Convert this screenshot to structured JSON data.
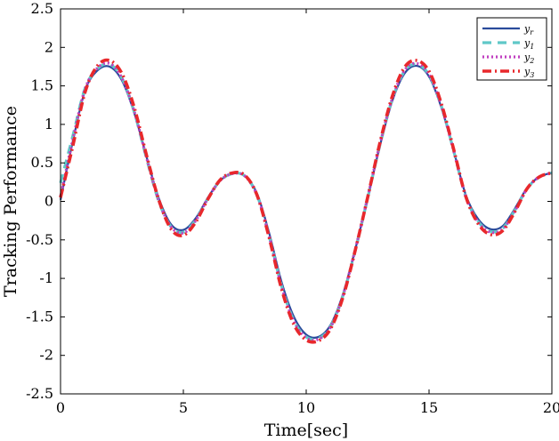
{
  "chart_data": {
    "type": "line",
    "title": "",
    "xlabel": "Time[sec]",
    "ylabel": "Tracking Performance",
    "xlim": [
      0,
      20
    ],
    "ylim": [
      -2.5,
      2.5
    ],
    "xticks": [
      0,
      5,
      10,
      15,
      20
    ],
    "xtick_labels": [
      "0",
      "5",
      "10",
      "15",
      "20"
    ],
    "yticks": [
      -2.5,
      -2,
      -1.5,
      -1,
      -0.5,
      0,
      0.5,
      1,
      1.5,
      2,
      2.5
    ],
    "ytick_labels": [
      "-2.5",
      "-2",
      "-1.5",
      "-1",
      "-0.5",
      "0",
      "0.5",
      "1",
      "1.5",
      "2",
      "2.5"
    ],
    "grid": false,
    "legend_position": "top-right",
    "x": [
      0,
      0.5,
      1,
      1.5,
      2,
      2.5,
      3,
      3.5,
      4,
      4.5,
      5,
      5.5,
      6,
      6.5,
      7,
      7.5,
      8,
      8.5,
      9,
      9.5,
      10,
      10.5,
      11,
      11.5,
      12,
      12.5,
      13,
      13.5,
      14,
      14.5,
      15,
      15.5,
      16,
      16.5,
      17,
      17.5,
      18,
      18.5,
      19,
      19.5,
      20
    ],
    "series": [
      {
        "name": "y_r",
        "legend_base": "y",
        "legend_sub": "r",
        "color": "#2a4b9b",
        "style": "solid",
        "values": [
          0.02,
          0.78,
          1.44,
          1.7,
          1.75,
          1.57,
          1.15,
          0.58,
          0.04,
          -0.3,
          -0.37,
          -0.22,
          0.05,
          0.27,
          0.36,
          0.33,
          0.1,
          -0.42,
          -1.05,
          -1.5,
          -1.73,
          -1.76,
          -1.6,
          -1.2,
          -0.62,
          0.04,
          0.72,
          1.3,
          1.66,
          1.76,
          1.62,
          1.22,
          0.66,
          0.08,
          -0.23,
          -0.36,
          -0.32,
          -0.09,
          0.18,
          0.32,
          0.37
        ]
      },
      {
        "name": "y_1",
        "legend_base": "y",
        "legend_sub": "1",
        "color": "#5fc8c8",
        "style": "dashed",
        "values": [
          0.24,
          0.85,
          1.47,
          1.72,
          1.78,
          1.6,
          1.16,
          0.56,
          0.0,
          -0.33,
          -0.4,
          -0.24,
          0.04,
          0.27,
          0.36,
          0.33,
          0.08,
          -0.46,
          -1.1,
          -1.55,
          -1.76,
          -1.78,
          -1.62,
          -1.22,
          -0.63,
          0.04,
          0.73,
          1.32,
          1.69,
          1.78,
          1.64,
          1.24,
          0.66,
          0.06,
          -0.26,
          -0.39,
          -0.35,
          -0.11,
          0.17,
          0.32,
          0.37
        ]
      },
      {
        "name": "y_2",
        "legend_base": "y",
        "legend_sub": "2",
        "color": "#c040c0",
        "style": "dotted",
        "values": [
          0.06,
          0.8,
          1.46,
          1.73,
          1.79,
          1.6,
          1.17,
          0.57,
          0.01,
          -0.33,
          -0.41,
          -0.25,
          0.04,
          0.27,
          0.36,
          0.33,
          0.08,
          -0.46,
          -1.11,
          -1.56,
          -1.77,
          -1.79,
          -1.63,
          -1.22,
          -0.62,
          0.05,
          0.74,
          1.33,
          1.7,
          1.79,
          1.65,
          1.24,
          0.66,
          0.06,
          -0.27,
          -0.4,
          -0.36,
          -0.12,
          0.17,
          0.32,
          0.37
        ]
      },
      {
        "name": "y_3",
        "legend_base": "y",
        "legend_sub": "3",
        "color": "#e8282c",
        "style": "dashdot",
        "values": [
          0.05,
          0.72,
          1.42,
          1.76,
          1.83,
          1.66,
          1.22,
          0.6,
          0.02,
          -0.36,
          -0.44,
          -0.27,
          0.03,
          0.28,
          0.37,
          0.34,
          0.08,
          -0.48,
          -1.14,
          -1.6,
          -1.8,
          -1.81,
          -1.65,
          -1.24,
          -0.63,
          0.05,
          0.76,
          1.36,
          1.74,
          1.83,
          1.69,
          1.27,
          0.68,
          0.06,
          -0.29,
          -0.43,
          -0.38,
          -0.13,
          0.17,
          0.32,
          0.37
        ]
      }
    ]
  }
}
